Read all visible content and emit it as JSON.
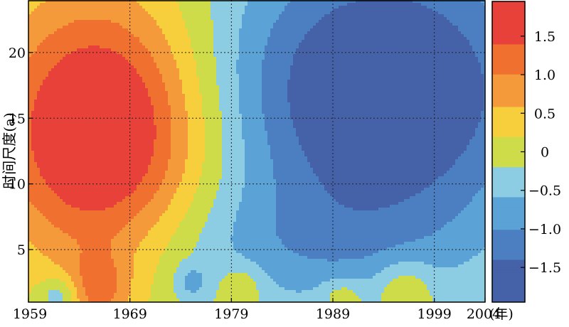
{
  "chart_data": {
    "type": "heatmap",
    "title": "",
    "xlabel": "",
    "ylabel": "时间尺度(a)",
    "x_unit": "(年)",
    "xlim": [
      1959,
      2004
    ],
    "ylim": [
      1,
      24
    ],
    "x_ticks": [
      1959,
      1969,
      1979,
      1989,
      1999,
      2004
    ],
    "x_tick_labels": [
      "1959",
      "1969",
      "1979",
      "1989",
      "1999",
      "2004"
    ],
    "y_ticks": [
      5,
      10,
      15,
      20
    ],
    "y_tick_labels": [
      "5",
      "10",
      "15",
      "20"
    ],
    "grid": true,
    "colorbar": {
      "range": [
        -1.95,
        1.95
      ],
      "ticks": [
        1.5,
        1.0,
        0.5,
        0,
        -0.5,
        -1.0,
        -1.5
      ],
      "tick_labels": [
        "1.5",
        "1.0",
        "0.5",
        "0",
        "−0.5",
        "−1.0",
        "−1.5"
      ],
      "levels": [
        {
          "min": 1.4,
          "color": "#e8413a"
        },
        {
          "min": 1.0,
          "color": "#f07030"
        },
        {
          "min": 0.6,
          "color": "#f59a3a"
        },
        {
          "min": 0.2,
          "color": "#f7cf3c"
        },
        {
          "min": -0.2,
          "color": "#cfdc4a"
        },
        {
          "min": -0.6,
          "color": "#8ccde3"
        },
        {
          "min": -1.0,
          "color": "#5ba2d6"
        },
        {
          "min": -1.4,
          "color": "#4b7fc1"
        },
        {
          "min": -9,
          "color": "#4561a8"
        }
      ]
    },
    "centers": [
      {
        "x": 1966,
        "y": 14,
        "amp": 2.25,
        "sx": 7,
        "sy": 7
      },
      {
        "x": 1966,
        "y": 2.0,
        "amp": 0.9,
        "sx": 2.2,
        "sy": 2.0
      },
      {
        "x": 1994,
        "y": 17,
        "amp": -2.1,
        "sx": 11,
        "sy": 8
      },
      {
        "x": 1984,
        "y": 5,
        "amp": -0.55,
        "sx": 12,
        "sy": 3.5
      },
      {
        "x": 1990,
        "y": 1.5,
        "amp": 0.55,
        "sx": 1.5,
        "sy": 1.0
      },
      {
        "x": 1996,
        "y": 2.0,
        "amp": 0.65,
        "sx": 2.0,
        "sy": 1.6
      },
      {
        "x": 1980,
        "y": 2.2,
        "amp": 0.55,
        "sx": 1.5,
        "sy": 1.2
      },
      {
        "x": 1975,
        "y": 2.5,
        "amp": -0.6,
        "sx": 1.2,
        "sy": 1.0
      },
      {
        "x": 1962,
        "y": 1.5,
        "amp": -0.8,
        "sx": 1.3,
        "sy": 1.0
      }
    ]
  }
}
